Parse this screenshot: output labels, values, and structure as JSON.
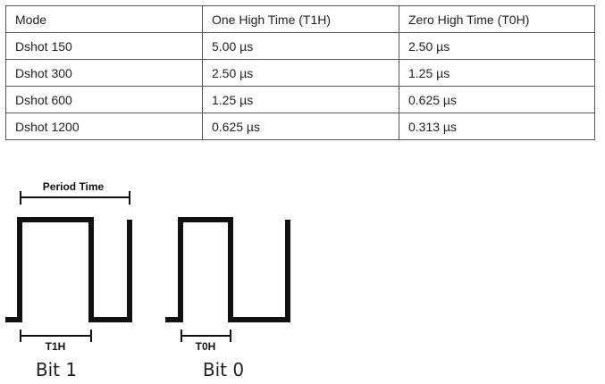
{
  "table": {
    "headers": [
      "Mode",
      "One High Time (T1H)",
      "Zero High Time (T0H)"
    ],
    "rows": [
      [
        "Dshot 150",
        "5.00 µs",
        "2.50 µs"
      ],
      [
        "Dshot 300",
        "2.50 µs",
        "1.25 µs"
      ],
      [
        "Dshot 600",
        "1.25 µs",
        "0.625 µs"
      ],
      [
        "Dshot 1200",
        "0.625 µs",
        "0.313 µs"
      ]
    ]
  },
  "diagram": {
    "period_label": "Period Time",
    "t1h_label": "T1H",
    "t0h_label": "T0H",
    "bit1_label": "Bit 1",
    "bit0_label": "Bit 0"
  }
}
